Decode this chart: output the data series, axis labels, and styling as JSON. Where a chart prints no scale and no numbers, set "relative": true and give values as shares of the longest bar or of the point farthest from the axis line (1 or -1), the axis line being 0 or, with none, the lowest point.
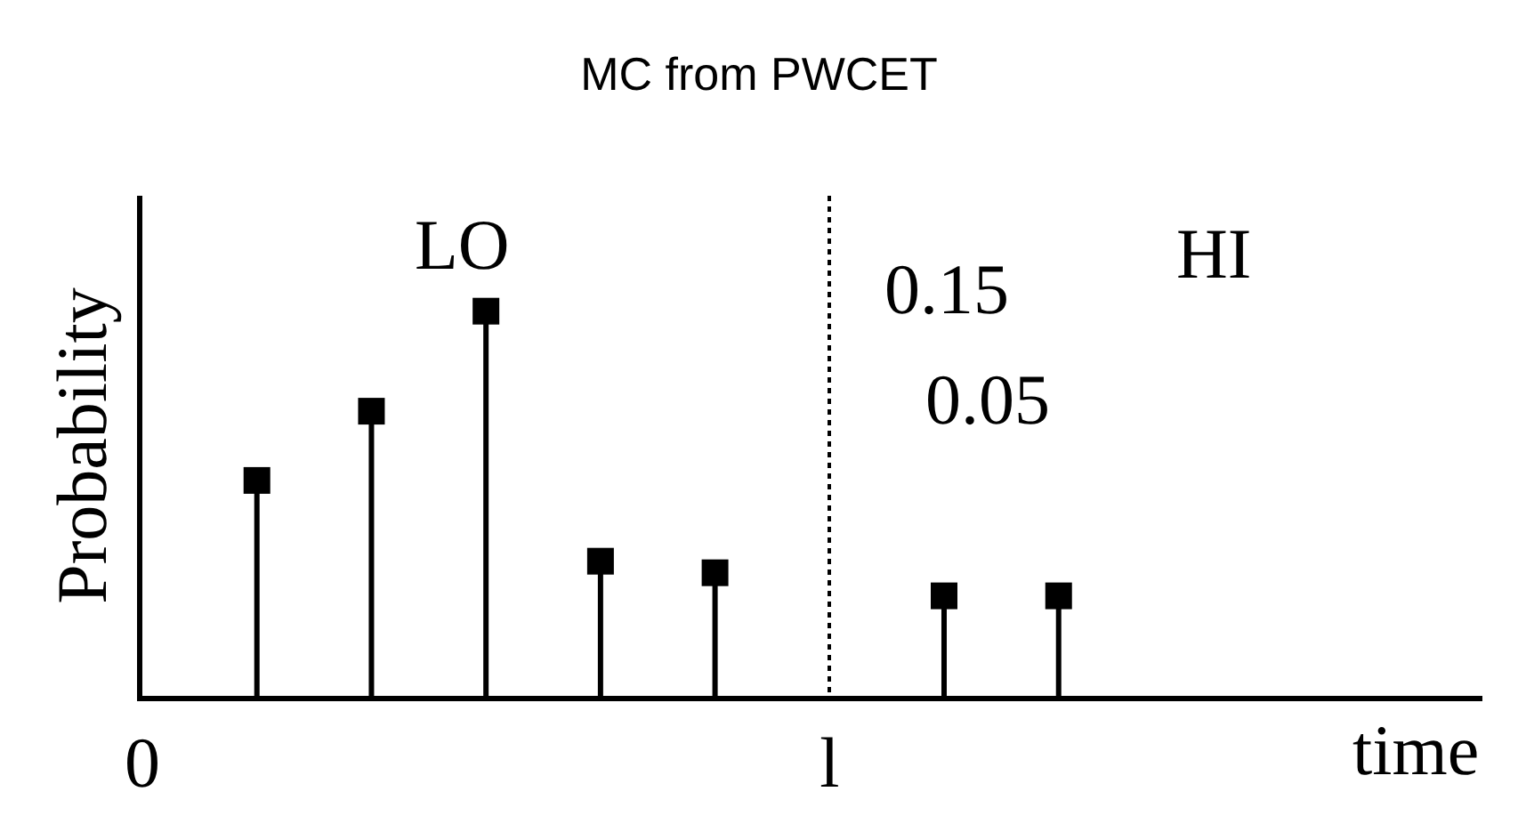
{
  "chart_data": {
    "type": "lollipop",
    "title": "MC from PWCET",
    "xlabel": "time",
    "ylabel": "Probability",
    "relative": true,
    "marker": "square",
    "categories": [
      "0",
      null,
      null,
      null,
      null,
      null,
      "l",
      null,
      null
    ],
    "values": [
      null,
      0.56,
      0.74,
      1,
      0.35,
      0.32,
      null,
      0.26,
      0.26
    ],
    "color": "#000000",
    "tick_labels": "x",
    "grid": "x",
    "annotations": [
      "LO",
      "HI",
      "0.15",
      "0.05"
    ]
  }
}
